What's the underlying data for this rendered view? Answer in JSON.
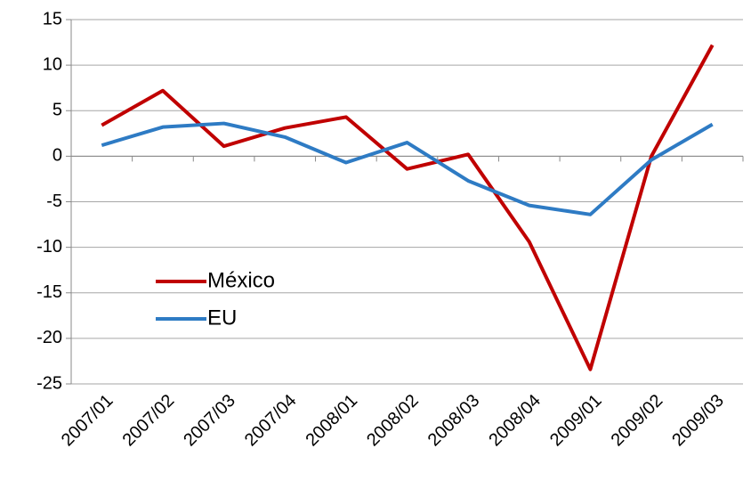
{
  "chart_data": {
    "type": "line",
    "categories": [
      "2007/01",
      "2007/02",
      "2007/03",
      "2007/04",
      "2008/01",
      "2008/02",
      "2008/03",
      "2008/04",
      "2009/01",
      "2009/02",
      "2009/03"
    ],
    "series": [
      {
        "name": "México",
        "color": "#c00000",
        "values": [
          3.4,
          7.2,
          1.1,
          3.1,
          4.3,
          -1.4,
          0.2,
          -9.4,
          -23.4,
          0.0,
          12.2
        ]
      },
      {
        "name": "EU",
        "color": "#2e7bc4",
        "values": [
          1.2,
          3.2,
          3.6,
          2.1,
          -0.7,
          1.5,
          -2.7,
          -5.4,
          -6.4,
          -0.4,
          3.5
        ]
      }
    ],
    "ylim": [
      -25,
      15
    ],
    "yticks": [
      -25,
      -20,
      -15,
      -10,
      -5,
      0,
      5,
      10,
      15
    ],
    "grid": true,
    "legend": "left"
  }
}
